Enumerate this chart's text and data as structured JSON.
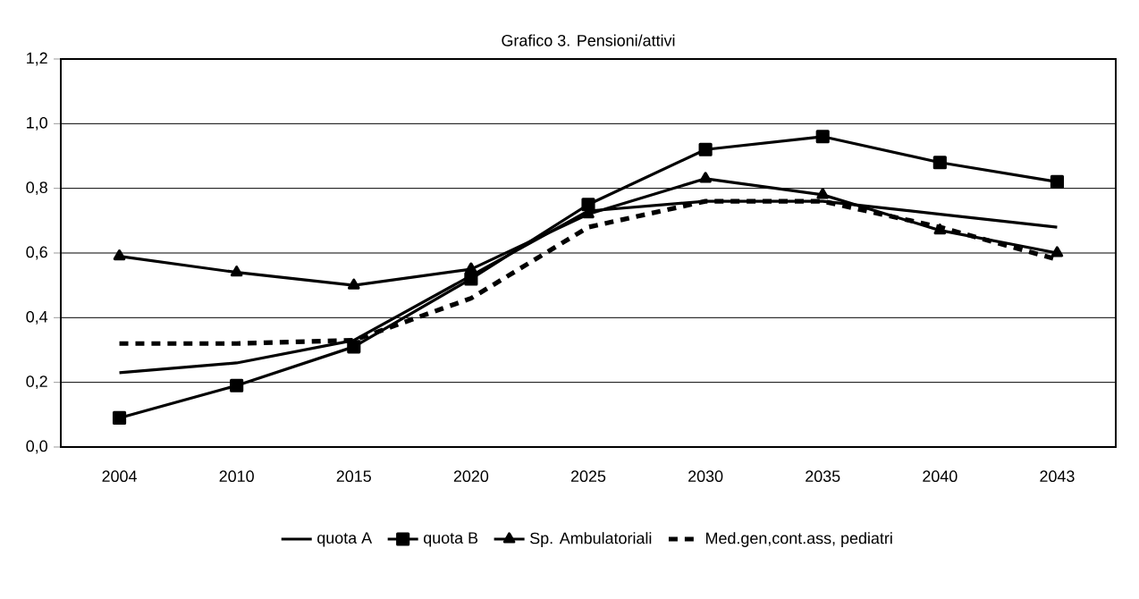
{
  "chart_data": {
    "type": "line",
    "title": "Grafico 3. Pensioni/attivi",
    "categories": [
      "2004",
      "2010",
      "2015",
      "2020",
      "2025",
      "2030",
      "2035",
      "2040",
      "2043"
    ],
    "series": [
      {
        "name": "quota A",
        "color": "#000000",
        "marker": "none",
        "line_style": "solid",
        "values": [
          0.23,
          0.26,
          0.33,
          0.53,
          0.73,
          0.76,
          0.76,
          0.72,
          0.68
        ]
      },
      {
        "name": "quota B",
        "color": "#000000",
        "marker": "square",
        "line_style": "solid",
        "values": [
          0.09,
          0.19,
          0.31,
          0.52,
          0.75,
          0.92,
          0.96,
          0.88,
          0.82
        ]
      },
      {
        "name": "Sp. Ambulatoriali",
        "color": "#000000",
        "marker": "triangle",
        "line_style": "solid",
        "values": [
          0.59,
          0.54,
          0.5,
          0.55,
          0.72,
          0.83,
          0.78,
          0.67,
          0.6
        ]
      },
      {
        "name": "Med.gen,cont.ass, pediatri",
        "color": "#000000",
        "marker": "none",
        "line_style": "dashed",
        "values": [
          0.32,
          0.32,
          0.33,
          0.46,
          0.68,
          0.76,
          0.76,
          0.68,
          0.58
        ]
      }
    ],
    "ylim": [
      0,
      1.2
    ],
    "yticks": [
      {
        "value": 0,
        "label": "0,0"
      },
      {
        "value": 0.2,
        "label": "0,2"
      },
      {
        "value": 0.4,
        "label": "0,4"
      },
      {
        "value": 0.6,
        "label": "0,6"
      },
      {
        "value": 0.8,
        "label": "0,8"
      },
      {
        "value": 1.0,
        "label": "1,0"
      },
      {
        "value": 1.2,
        "label": "1,2"
      }
    ],
    "grid": "y",
    "legend": "bottom"
  }
}
